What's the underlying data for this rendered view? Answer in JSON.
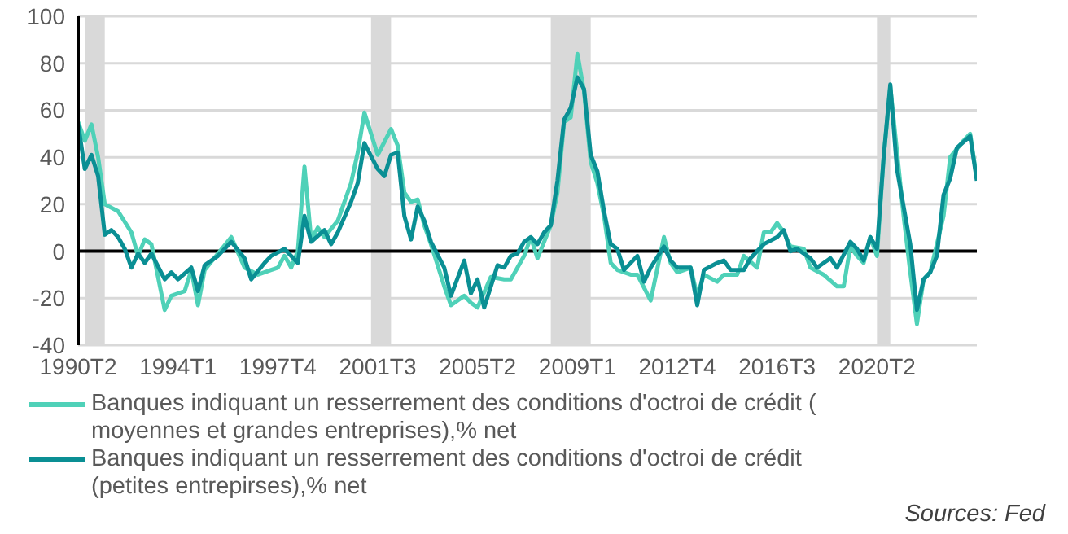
{
  "chart_data": {
    "type": "line",
    "xlim": [
      "1990-04",
      "2024-01"
    ],
    "xticks": [
      {
        "value": "1990-04",
        "label": "1990T2"
      },
      {
        "value": "1994-01",
        "label": "1994T1"
      },
      {
        "value": "1997-10",
        "label": "1997T4"
      },
      {
        "value": "2001-07",
        "label": "2001T3"
      },
      {
        "value": "2005-04",
        "label": "2005T2"
      },
      {
        "value": "2009-01",
        "label": "2009T1"
      },
      {
        "value": "2012-10",
        "label": "2012T4"
      },
      {
        "value": "2016-07",
        "label": "2016T3"
      },
      {
        "value": "2020-04",
        "label": "2020T2"
      }
    ],
    "ylim": [
      -40,
      100
    ],
    "yticks": [
      -40,
      -20,
      0,
      20,
      40,
      60,
      80,
      100
    ],
    "grid": "y",
    "legend": "bottom",
    "line_style": "solid",
    "ref_lines": [
      {
        "axis": "y",
        "value": 0,
        "label": null,
        "color": "#000000"
      }
    ],
    "bands": [
      {
        "axis": "x",
        "from": "1990-07",
        "to": "1991-04",
        "label": null,
        "color": "#d9d9d9"
      },
      {
        "axis": "x",
        "from": "2001-04",
        "to": "2002-01",
        "label": null,
        "color": "#d9d9d9"
      },
      {
        "axis": "x",
        "from": "2008-01",
        "to": "2009-07",
        "label": null,
        "color": "#d9d9d9"
      },
      {
        "axis": "x",
        "from": "2020-04",
        "to": "2020-10",
        "label": null,
        "color": "#d9d9d9"
      }
    ],
    "series": [
      {
        "name": "Banques indiquant un resserrement des conditions d'octroi de crédit ( moyennes et grandes entreprises),% net",
        "color": "#4fd1b8",
        "x": [
          "1990-04",
          "1990-07",
          "1990-10",
          "1991-01",
          "1991-04",
          "1991-10",
          "1992-04",
          "1992-07",
          "1992-10",
          "1993-01",
          "1993-07",
          "1993-10",
          "1994-04",
          "1994-07",
          "1994-10",
          "1995-01",
          "1995-07",
          "1996-01",
          "1996-07",
          "1997-01",
          "1997-07",
          "1997-10",
          "1998-01",
          "1998-04",
          "1998-07",
          "1998-10",
          "1999-01",
          "1999-04",
          "1999-07",
          "2000-01",
          "2000-07",
          "2000-10",
          "2001-01",
          "2001-07",
          "2002-01",
          "2002-04",
          "2002-07",
          "2002-10",
          "2003-01",
          "2003-04",
          "2003-07",
          "2004-01",
          "2004-04",
          "2004-10",
          "2005-01",
          "2005-04",
          "2005-10",
          "2006-04",
          "2006-07",
          "2006-10",
          "2007-01",
          "2007-04",
          "2007-07",
          "2008-01",
          "2008-04",
          "2008-07",
          "2008-10",
          "2009-01",
          "2009-04",
          "2009-07",
          "2009-10",
          "2010-01",
          "2010-04",
          "2010-07",
          "2011-01",
          "2011-04",
          "2011-10",
          "2012-04",
          "2012-07",
          "2012-10",
          "2013-04",
          "2013-07",
          "2013-10",
          "2014-04",
          "2014-07",
          "2015-01",
          "2015-04",
          "2015-10",
          "2016-01",
          "2016-04",
          "2016-07",
          "2016-10",
          "2017-01",
          "2017-07",
          "2017-10",
          "2018-04",
          "2018-10",
          "2019-01",
          "2019-04",
          "2019-07",
          "2019-10",
          "2020-01",
          "2020-04",
          "2020-07",
          "2020-10",
          "2021-04",
          "2021-07",
          "2021-10",
          "2022-01",
          "2022-04",
          "2022-10",
          "2023-01",
          "2023-07",
          "2023-10",
          "2024-01"
        ],
        "values": [
          55,
          47,
          54,
          40,
          20,
          17,
          8,
          -2,
          5,
          3,
          -25,
          -19,
          -17,
          -8,
          -23,
          -8,
          -1,
          6,
          -7,
          -10,
          -8,
          -7,
          -2,
          -7,
          0,
          36,
          5,
          10,
          6,
          13,
          29,
          42,
          59,
          41,
          52,
          45,
          25,
          21,
          22,
          11,
          3,
          -15,
          -23,
          -19,
          -22,
          -24,
          -11,
          -12,
          -12,
          -7,
          -2,
          6,
          -3,
          11,
          25,
          55,
          57,
          84,
          68,
          38,
          29,
          15,
          -5,
          -8,
          -10,
          -10,
          -21,
          6,
          -5,
          -9,
          -7,
          -19,
          -10,
          -13,
          -10,
          -10,
          -2,
          -7,
          8,
          8,
          12,
          8,
          2,
          1,
          -7,
          -10,
          -15,
          -15,
          2,
          -2,
          -5,
          6,
          -2,
          40,
          70,
          15,
          -9,
          -31,
          -12,
          -9,
          15,
          40,
          47,
          50,
          31
        ]
      },
      {
        "name": "Banques indiquant un resserrement des conditions d'octroi de crédit (petites entrepirses),% net",
        "color": "#0a8f94",
        "x": [
          "1990-04",
          "1990-07",
          "1990-10",
          "1991-01",
          "1991-04",
          "1991-07",
          "1991-10",
          "1992-01",
          "1992-04",
          "1992-07",
          "1992-10",
          "1993-01",
          "1993-07",
          "1993-10",
          "1994-01",
          "1994-07",
          "1994-10",
          "1995-01",
          "1995-07",
          "1996-01",
          "1996-07",
          "1996-10",
          "1997-04",
          "1997-07",
          "1998-01",
          "1998-07",
          "1998-10",
          "1999-01",
          "1999-07",
          "1999-10",
          "2000-01",
          "2000-07",
          "2000-10",
          "2001-01",
          "2001-07",
          "2001-10",
          "2002-01",
          "2002-04",
          "2002-07",
          "2002-10",
          "2003-01",
          "2003-04",
          "2003-07",
          "2004-01",
          "2004-04",
          "2004-10",
          "2005-01",
          "2005-04",
          "2005-07",
          "2006-01",
          "2006-04",
          "2006-07",
          "2006-10",
          "2007-01",
          "2007-04",
          "2007-07",
          "2007-10",
          "2008-01",
          "2008-04",
          "2008-07",
          "2008-10",
          "2009-01",
          "2009-04",
          "2009-07",
          "2009-10",
          "2010-01",
          "2010-04",
          "2010-07",
          "2010-10",
          "2011-04",
          "2011-07",
          "2011-10",
          "2012-04",
          "2012-07",
          "2012-10",
          "2013-04",
          "2013-07",
          "2013-10",
          "2014-04",
          "2014-07",
          "2014-10",
          "2015-04",
          "2015-07",
          "2015-10",
          "2016-01",
          "2016-07",
          "2016-10",
          "2017-01",
          "2017-04",
          "2017-10",
          "2018-01",
          "2018-07",
          "2018-10",
          "2019-04",
          "2019-07",
          "2019-10",
          "2020-01",
          "2020-04",
          "2020-07",
          "2020-10",
          "2021-01",
          "2021-07",
          "2021-10",
          "2022-01",
          "2022-04",
          "2022-07",
          "2022-10",
          "2023-01",
          "2023-04",
          "2023-10",
          "2024-01"
        ],
        "values": [
          54,
          35,
          41,
          32,
          7,
          9,
          6,
          1,
          -7,
          -1,
          -5,
          -1,
          -12,
          -9,
          -12,
          -7,
          -17,
          -6,
          -2,
          4,
          -3,
          -12,
          -5,
          -2,
          1,
          -5,
          15,
          4,
          9,
          3,
          8,
          21,
          29,
          46,
          35,
          32,
          41,
          42,
          15,
          5,
          19,
          13,
          4,
          -7,
          -19,
          -4,
          -18,
          -12,
          -24,
          -6,
          -7,
          -2,
          -1,
          4,
          6,
          3,
          8,
          11,
          30,
          56,
          61,
          74,
          69,
          41,
          34,
          17,
          3,
          1,
          -8,
          -2,
          -13,
          -7,
          2,
          -4,
          -7,
          -7,
          -23,
          -8,
          -5,
          -4,
          -8,
          -8,
          -3,
          0,
          3,
          6,
          9,
          0,
          1,
          -3,
          -7,
          -3,
          -7,
          4,
          1,
          -4,
          6,
          1,
          40,
          71,
          35,
          3,
          -25,
          -12,
          -9,
          -2,
          24,
          31,
          44,
          49,
          30
        ]
      }
    ],
    "annotations": [
      "Sources: Fed"
    ]
  }
}
